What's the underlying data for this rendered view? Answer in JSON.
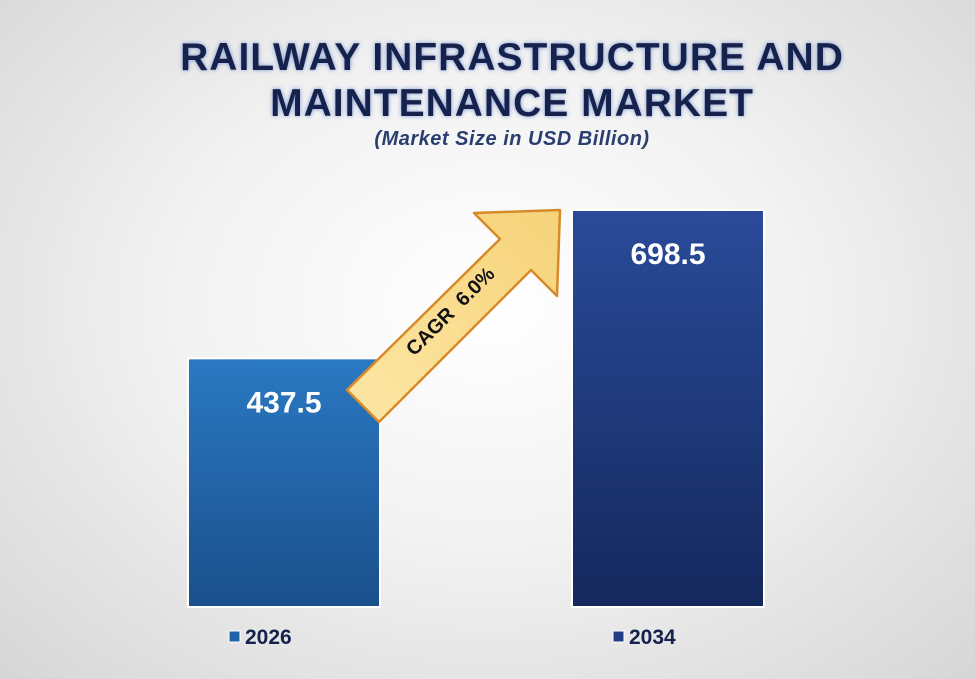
{
  "chart_data": {
    "type": "bar",
    "title_line1": "RAILWAY INFRASTRUCTURE AND",
    "title_line2": "MAINTENANCE MARKET",
    "subtitle": "(Market Size in USD Billion)",
    "categories": [
      "2026",
      "2034"
    ],
    "values": [
      437.5,
      698.5
    ],
    "value_labels": [
      "437.5",
      "698.5"
    ],
    "colors": [
      "#2063a8",
      "#223f86"
    ],
    "legend": [
      "2026",
      "2034"
    ],
    "legend_placement": "bottom",
    "annotation": "CAGR  6.0%",
    "grid": false,
    "ylim": [
      0,
      698.5
    ]
  }
}
